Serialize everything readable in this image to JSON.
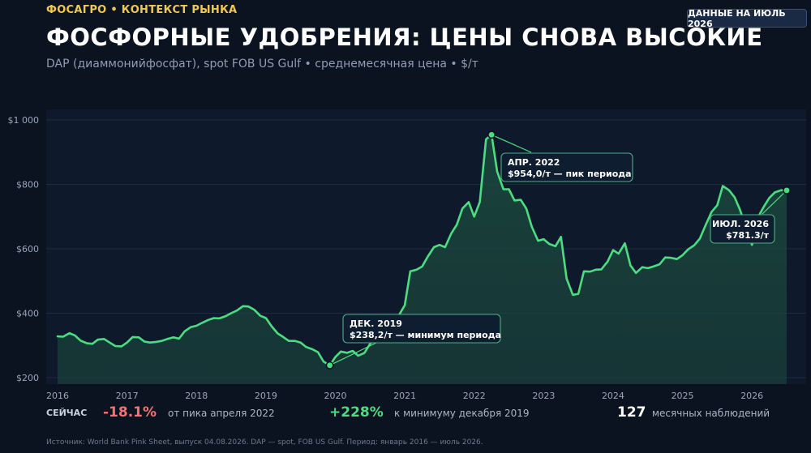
{
  "header": {
    "kicker": "ФОСАГРО • КОНТЕКСТ РЫНКА",
    "badge": "ДАННЫЕ НА ИЮЛЬ 2026",
    "title": "ФОСФОРНЫЕ УДОБРЕНИЯ: ЦЕНЫ СНОВА ВЫСОКИЕ",
    "subtitle": "DAP (диаммонийфосфат), spot FOB US Gulf • среднемесячная цена • $/т"
  },
  "colors": {
    "background": "#0b1320",
    "plot_background": "#0e1a2c",
    "line": "#4ade80",
    "area": "#1c4a3e",
    "kicker": "#f2c94c",
    "negative": "#f87171",
    "positive": "#4ade80"
  },
  "chart_data": {
    "type": "area",
    "x_start": "2016-01",
    "x_end": "2026-07",
    "xlim": [
      2016.0,
      2026.55
    ],
    "ylim": [
      180,
      1030
    ],
    "yticks": [
      200,
      400,
      600,
      800,
      1000
    ],
    "ytick_labels": [
      "$200",
      "$400",
      "$600",
      "$800",
      "$1 000"
    ],
    "xticks": [
      2016,
      2017,
      2018,
      2019,
      2020,
      2021,
      2022,
      2023,
      2024,
      2025,
      2026
    ],
    "xtick_labels": [
      "2016",
      "2017",
      "2018",
      "2019",
      "2020",
      "2021",
      "2022",
      "2023",
      "2024",
      "2025",
      "2026"
    ],
    "grid": true,
    "series": [
      {
        "x": [
          2016.0,
          2016.08,
          2016.17,
          2016.25,
          2016.33,
          2016.42,
          2016.5,
          2016.58,
          2016.67,
          2016.75,
          2016.83,
          2016.92,
          2017.0,
          2017.08,
          2017.17,
          2017.25,
          2017.33,
          2017.42,
          2017.5,
          2017.58,
          2017.67,
          2017.75,
          2017.83,
          2017.92,
          2018.0,
          2018.08,
          2018.17,
          2018.25,
          2018.33,
          2018.42,
          2018.5,
          2018.58,
          2018.67,
          2018.75,
          2018.83,
          2018.92,
          2019.0,
          2019.08,
          2019.17,
          2019.25,
          2019.33,
          2019.42,
          2019.5,
          2019.58,
          2019.67,
          2019.75,
          2019.83,
          2019.92,
          2020.0,
          2020.08,
          2020.17,
          2020.25,
          2020.33,
          2020.42,
          2020.5,
          2020.58,
          2020.67,
          2020.75,
          2020.83,
          2020.92,
          2021.0,
          2021.08,
          2021.17,
          2021.25,
          2021.33,
          2021.42,
          2021.5,
          2021.58,
          2021.67,
          2021.75,
          2021.83,
          2021.92,
          2022.0,
          2022.08,
          2022.17,
          2022.25,
          2022.33,
          2022.42,
          2022.5,
          2022.58,
          2022.67,
          2022.75,
          2022.83,
          2022.92,
          2023.0,
          2023.08,
          2023.17,
          2023.25,
          2023.33,
          2023.42,
          2023.5,
          2023.58,
          2023.67,
          2023.75,
          2023.83,
          2023.92,
          2024.0,
          2024.08,
          2024.17,
          2024.25,
          2024.33,
          2024.42,
          2024.5,
          2024.58,
          2024.67,
          2024.75,
          2024.83,
          2024.92,
          2025.0,
          2025.08,
          2025.17,
          2025.25,
          2025.33,
          2025.42,
          2025.5,
          2025.58,
          2025.67,
          2025.75,
          2025.83,
          2025.92,
          2026.0,
          2026.08,
          2026.17,
          2026.25,
          2026.33,
          2026.42,
          2026.5
        ],
        "y": [
          328,
          327,
          338,
          331,
          315,
          307,
          305,
          318,
          320,
          309,
          298,
          297,
          309,
          326,
          325,
          312,
          309,
          311,
          314,
          320,
          325,
          321,
          344,
          357,
          361,
          370,
          379,
          385,
          384,
          391,
          400,
          408,
          422,
          421,
          411,
          392,
          385,
          360,
          337,
          326,
          314,
          314,
          309,
          295,
          288,
          279,
          250,
          238,
          264,
          281,
          277,
          283,
          268,
          277,
          305,
          325,
          345,
          365,
          375,
          395,
          425,
          530,
          535,
          545,
          575,
          605,
          612,
          605,
          648,
          675,
          725,
          745,
          700,
          745,
          940,
          954,
          840,
          785,
          785,
          750,
          752,
          725,
          668,
          625,
          630,
          615,
          608,
          637,
          508,
          457,
          460,
          530,
          529,
          535,
          536,
          560,
          596,
          585,
          617,
          548,
          525,
          543,
          540,
          545,
          552,
          573,
          572,
          568,
          580,
          598,
          611,
          632,
          672,
          715,
          735,
          795,
          782,
          760,
          720,
          660,
          612,
          695,
          730,
          758,
          775,
          782,
          781.3
        ]
      }
    ],
    "annotations": [
      {
        "label_line1": "АПР. 2022",
        "label_line2": "$954,0/т — пик периода",
        "x": 2022.25,
        "y": 954
      },
      {
        "label_line1": "ДЕК. 2019",
        "label_line2": "$238,2/т — минимум периода",
        "x": 2019.92,
        "y": 238.2
      },
      {
        "label_line1": "ИЮЛ. 2026",
        "label_line2": "$781.3/т",
        "x": 2026.5,
        "y": 781.3
      }
    ]
  },
  "stats": {
    "now_label": "СЕЙЧАС",
    "change_from_peak": "-18.1%",
    "change_from_peak_desc": "от пика апреля 2022",
    "change_from_min": "+228%",
    "change_from_min_desc": "к минимуму декабря 2019",
    "observations": "127",
    "observations_desc": "месячных наблюдений"
  },
  "footer": {
    "source": "Источник: World Bank Pink Sheet, выпуск 04.08.2026. DAP — spot, FOB US Gulf. Период: январь 2016 — июль 2026."
  }
}
